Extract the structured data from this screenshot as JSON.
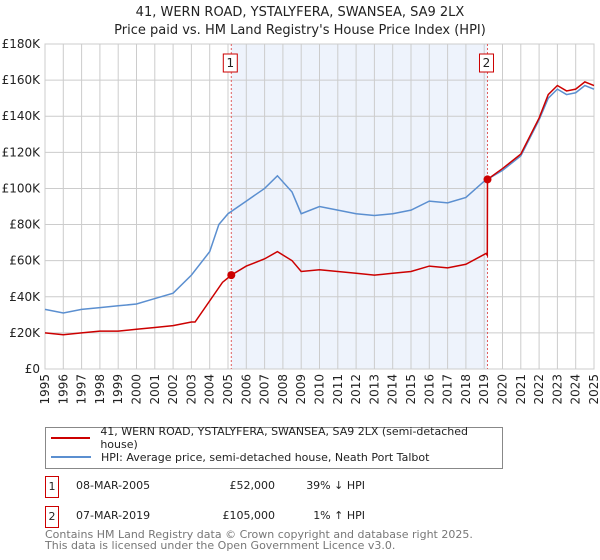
{
  "chart_data": {
    "type": "line",
    "title": "41, WERN ROAD, YSTALYFERA, SWANSEA, SA9 2LX",
    "subtitle": "Price paid vs. HM Land Registry's House Price Index (HPI)",
    "xlim": [
      1995,
      2025
    ],
    "ylim": [
      0,
      180000
    ],
    "y_ticks": [
      {
        "v": 0,
        "label": "£0"
      },
      {
        "v": 20000,
        "label": "£20K"
      },
      {
        "v": 40000,
        "label": "£40K"
      },
      {
        "v": 60000,
        "label": "£60K"
      },
      {
        "v": 80000,
        "label": "£80K"
      },
      {
        "v": 100000,
        "label": "£100K"
      },
      {
        "v": 120000,
        "label": "£120K"
      },
      {
        "v": 140000,
        "label": "£140K"
      },
      {
        "v": 160000,
        "label": "£160K"
      },
      {
        "v": 180000,
        "label": "£180K"
      }
    ],
    "x_ticks": [
      "1995",
      "1996",
      "1997",
      "1998",
      "1999",
      "2000",
      "2001",
      "2002",
      "2003",
      "2004",
      "2005",
      "2006",
      "2007",
      "2008",
      "2009",
      "2010",
      "2011",
      "2012",
      "2013",
      "2014",
      "2015",
      "2016",
      "2017",
      "2018",
      "2019",
      "2020",
      "2021",
      "2022",
      "2023",
      "2024",
      "2025"
    ],
    "grid": true,
    "series": [
      {
        "name": "41, WERN ROAD, YSTALYFERA, SWANSEA, SA9 2LX (semi-detached house)",
        "color": "#cc0000",
        "x": [
          1995,
          1996,
          1997,
          1998,
          1999,
          2000,
          2001,
          2002,
          2003,
          2003.2,
          2004.7,
          2005.18,
          2006,
          2007,
          2007.7,
          2008.5,
          2009,
          2010,
          2011,
          2012,
          2013,
          2014,
          2015,
          2016,
          2017,
          2018,
          2019.1,
          2019.17,
          2019.18,
          2020,
          2021,
          2021.5,
          2022,
          2022.5,
          2023,
          2023.5,
          2024,
          2024.5,
          2025
        ],
        "y": [
          20000,
          19000,
          20000,
          21000,
          21000,
          22000,
          23000,
          24000,
          26000,
          26000,
          48000,
          52000,
          57000,
          61000,
          65000,
          60000,
          54000,
          55000,
          54000,
          53000,
          52000,
          53000,
          54000,
          57000,
          56000,
          58000,
          64000,
          63000,
          105000,
          111000,
          119000,
          129000,
          139000,
          152000,
          157000,
          154000,
          155000,
          159000,
          157000
        ]
      },
      {
        "name": "HPI: Average price, semi-detached house, Neath Port Talbot",
        "color": "#5b8fd0",
        "x": [
          1995,
          1996,
          1997,
          1998,
          1999,
          2000,
          2001,
          2002,
          2003,
          2004,
          2004.5,
          2005,
          2006,
          2007,
          2007.7,
          2008.5,
          2009,
          2010,
          2011,
          2012,
          2013,
          2014,
          2015,
          2016,
          2017,
          2018,
          2019,
          2020,
          2021,
          2021.5,
          2022,
          2022.5,
          2023,
          2023.5,
          2024,
          2024.5,
          2025
        ],
        "y": [
          33000,
          31000,
          33000,
          34000,
          35000,
          36000,
          39000,
          42000,
          52000,
          65000,
          80000,
          86000,
          93000,
          100000,
          107000,
          98000,
          86000,
          90000,
          88000,
          86000,
          85000,
          86000,
          88000,
          93000,
          92000,
          95000,
          104000,
          110000,
          118000,
          128000,
          138000,
          150000,
          155000,
          152000,
          153000,
          157000,
          155000
        ]
      }
    ],
    "sales": [
      {
        "id": "1",
        "year": 2005.18,
        "price": 52000,
        "date": "08-MAR-2005",
        "price_label": "£52,000",
        "hpi": "39% ↓ HPI"
      },
      {
        "id": "2",
        "year": 2019.18,
        "price": 105000,
        "date": "07-MAR-2019",
        "price_label": "£105,000",
        "hpi": "1% ↑ HPI"
      }
    ]
  },
  "footer": {
    "line1": "Contains HM Land Registry data © Crown copyright and database right 2025.",
    "line2": "This data is licensed under the Open Government Licence v3.0."
  }
}
